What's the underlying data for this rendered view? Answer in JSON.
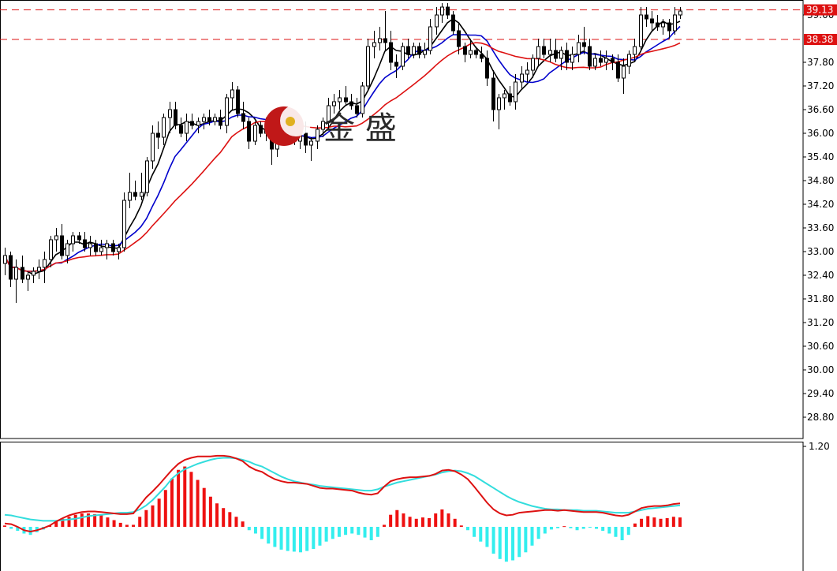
{
  "colors": {
    "background": "#ffffff",
    "frame": "#000000",
    "bull_candle": "#ffffff",
    "bear_candle": "#000000",
    "ma_fast": "#000000",
    "ma_mid": "#0000cc",
    "ma_slow": "#dd1111",
    "level_line": "#dd1111",
    "macd_pos": "#ee1111",
    "macd_neg": "#33eeee",
    "macd_line": "#dd1111",
    "signal_line": "#33dddd",
    "logo_red": "#c01818",
    "logo_gold": "#e0b020"
  },
  "logo": {
    "text": "金 盛"
  },
  "chart_data": [
    {
      "type": "candlestick",
      "title": "",
      "ylim": [
        28.4,
        39.5
      ],
      "y_ticks": [
        "39.00",
        "37.80",
        "37.20",
        "36.60",
        "36.00",
        "35.40",
        "34.80",
        "34.20",
        "33.60",
        "33.00",
        "32.40",
        "31.80",
        "31.20",
        "30.60",
        "30.00",
        "29.40",
        "28.80"
      ],
      "price_labels": [
        {
          "text": "39.13",
          "value": 39.13,
          "style": "filled"
        },
        {
          "text": "38.38",
          "value": 38.38,
          "style": "filled"
        }
      ],
      "levels": [
        39.13,
        38.38
      ],
      "candles": [
        {
          "o": 32.7,
          "h": 33.1,
          "l": 32.4,
          "c": 32.9
        },
        {
          "o": 32.9,
          "h": 33.0,
          "l": 32.1,
          "c": 32.3
        },
        {
          "o": 32.3,
          "h": 32.8,
          "l": 31.7,
          "c": 32.6
        },
        {
          "o": 32.6,
          "h": 32.9,
          "l": 32.2,
          "c": 32.3
        },
        {
          "o": 32.3,
          "h": 32.5,
          "l": 32.0,
          "c": 32.4
        },
        {
          "o": 32.4,
          "h": 32.6,
          "l": 32.2,
          "c": 32.5
        },
        {
          "o": 32.5,
          "h": 32.8,
          "l": 32.3,
          "c": 32.6
        },
        {
          "o": 32.6,
          "h": 33.0,
          "l": 32.2,
          "c": 32.8
        },
        {
          "o": 32.8,
          "h": 33.4,
          "l": 32.6,
          "c": 33.3
        },
        {
          "o": 33.3,
          "h": 33.6,
          "l": 33.0,
          "c": 33.4
        },
        {
          "o": 33.4,
          "h": 33.7,
          "l": 32.8,
          "c": 32.9
        },
        {
          "o": 32.9,
          "h": 33.3,
          "l": 32.7,
          "c": 33.2
        },
        {
          "o": 33.2,
          "h": 33.5,
          "l": 33.0,
          "c": 33.4
        },
        {
          "o": 33.4,
          "h": 33.5,
          "l": 33.2,
          "c": 33.3
        },
        {
          "o": 33.3,
          "h": 33.5,
          "l": 33.0,
          "c": 33.1
        },
        {
          "o": 33.1,
          "h": 33.4,
          "l": 32.9,
          "c": 33.2
        },
        {
          "o": 33.2,
          "h": 33.3,
          "l": 32.9,
          "c": 33.0
        },
        {
          "o": 33.0,
          "h": 33.3,
          "l": 32.9,
          "c": 33.1
        },
        {
          "o": 33.1,
          "h": 33.3,
          "l": 32.8,
          "c": 33.2
        },
        {
          "o": 33.2,
          "h": 33.3,
          "l": 32.9,
          "c": 33.0
        },
        {
          "o": 33.0,
          "h": 33.2,
          "l": 32.8,
          "c": 33.1
        },
        {
          "o": 33.1,
          "h": 34.5,
          "l": 33.0,
          "c": 34.3
        },
        {
          "o": 34.3,
          "h": 35.0,
          "l": 34.1,
          "c": 34.5
        },
        {
          "o": 34.5,
          "h": 34.8,
          "l": 34.3,
          "c": 34.4
        },
        {
          "o": 34.4,
          "h": 35.0,
          "l": 34.3,
          "c": 34.5
        },
        {
          "o": 34.5,
          "h": 35.4,
          "l": 34.4,
          "c": 35.3
        },
        {
          "o": 35.3,
          "h": 36.2,
          "l": 35.1,
          "c": 36.0
        },
        {
          "o": 36.0,
          "h": 36.3,
          "l": 35.6,
          "c": 35.9
        },
        {
          "o": 35.9,
          "h": 36.5,
          "l": 35.7,
          "c": 36.4
        },
        {
          "o": 36.4,
          "h": 36.8,
          "l": 36.0,
          "c": 36.6
        },
        {
          "o": 36.6,
          "h": 36.8,
          "l": 36.1,
          "c": 36.2
        },
        {
          "o": 36.2,
          "h": 36.4,
          "l": 35.9,
          "c": 36.0
        },
        {
          "o": 36.0,
          "h": 36.5,
          "l": 35.8,
          "c": 36.3
        },
        {
          "o": 36.3,
          "h": 36.5,
          "l": 36.1,
          "c": 36.2
        },
        {
          "o": 36.2,
          "h": 36.4,
          "l": 36.0,
          "c": 36.3
        },
        {
          "o": 36.3,
          "h": 36.5,
          "l": 36.1,
          "c": 36.4
        },
        {
          "o": 36.4,
          "h": 36.6,
          "l": 36.2,
          "c": 36.3
        },
        {
          "o": 36.3,
          "h": 36.5,
          "l": 36.2,
          "c": 36.4
        },
        {
          "o": 36.4,
          "h": 36.6,
          "l": 36.1,
          "c": 36.2
        },
        {
          "o": 36.2,
          "h": 37.0,
          "l": 36.0,
          "c": 36.9
        },
        {
          "o": 36.9,
          "h": 37.3,
          "l": 36.6,
          "c": 37.1
        },
        {
          "o": 37.1,
          "h": 37.2,
          "l": 36.4,
          "c": 36.5
        },
        {
          "o": 36.5,
          "h": 36.8,
          "l": 36.1,
          "c": 36.3
        },
        {
          "o": 36.3,
          "h": 36.4,
          "l": 35.6,
          "c": 35.8
        },
        {
          "o": 35.8,
          "h": 36.3,
          "l": 35.7,
          "c": 36.2
        },
        {
          "o": 36.2,
          "h": 36.3,
          "l": 35.9,
          "c": 36.0
        },
        {
          "o": 36.0,
          "h": 36.4,
          "l": 35.8,
          "c": 36.1
        },
        {
          "o": 36.1,
          "h": 36.3,
          "l": 35.2,
          "c": 35.6
        },
        {
          "o": 35.6,
          "h": 35.9,
          "l": 35.4,
          "c": 35.8
        },
        {
          "o": 35.8,
          "h": 36.2,
          "l": 35.7,
          "c": 36.1
        },
        {
          "o": 36.1,
          "h": 36.3,
          "l": 35.9,
          "c": 36.0
        },
        {
          "o": 36.0,
          "h": 36.2,
          "l": 35.7,
          "c": 35.8
        },
        {
          "o": 35.8,
          "h": 36.1,
          "l": 35.6,
          "c": 36.0
        },
        {
          "o": 36.0,
          "h": 36.3,
          "l": 35.5,
          "c": 35.7
        },
        {
          "o": 35.7,
          "h": 35.9,
          "l": 35.3,
          "c": 35.8
        },
        {
          "o": 35.8,
          "h": 36.2,
          "l": 35.6,
          "c": 36.1
        },
        {
          "o": 36.1,
          "h": 36.4,
          "l": 35.9,
          "c": 36.3
        },
        {
          "o": 36.3,
          "h": 36.9,
          "l": 36.1,
          "c": 36.7
        },
        {
          "o": 36.7,
          "h": 37.0,
          "l": 36.5,
          "c": 36.8
        },
        {
          "o": 36.8,
          "h": 37.1,
          "l": 36.6,
          "c": 36.9
        },
        {
          "o": 36.9,
          "h": 37.2,
          "l": 36.7,
          "c": 36.8
        },
        {
          "o": 36.8,
          "h": 37.0,
          "l": 36.6,
          "c": 36.7
        },
        {
          "o": 36.7,
          "h": 36.9,
          "l": 36.4,
          "c": 36.5
        },
        {
          "o": 36.5,
          "h": 37.3,
          "l": 36.4,
          "c": 37.2
        },
        {
          "o": 37.2,
          "h": 38.4,
          "l": 37.1,
          "c": 38.2
        },
        {
          "o": 38.2,
          "h": 38.6,
          "l": 37.9,
          "c": 38.3
        },
        {
          "o": 38.3,
          "h": 38.7,
          "l": 38.1,
          "c": 38.4
        },
        {
          "o": 38.4,
          "h": 39.1,
          "l": 38.1,
          "c": 38.3
        },
        {
          "o": 38.3,
          "h": 38.6,
          "l": 37.6,
          "c": 37.8
        },
        {
          "o": 37.8,
          "h": 38.0,
          "l": 37.4,
          "c": 37.7
        },
        {
          "o": 37.7,
          "h": 38.3,
          "l": 37.6,
          "c": 38.2
        },
        {
          "o": 38.2,
          "h": 38.4,
          "l": 37.9,
          "c": 38.0
        },
        {
          "o": 38.0,
          "h": 38.3,
          "l": 37.9,
          "c": 38.2
        },
        {
          "o": 38.2,
          "h": 38.3,
          "l": 37.9,
          "c": 38.0
        },
        {
          "o": 38.0,
          "h": 38.3,
          "l": 37.9,
          "c": 38.1
        },
        {
          "o": 38.1,
          "h": 38.9,
          "l": 38.0,
          "c": 38.7
        },
        {
          "o": 38.7,
          "h": 39.2,
          "l": 38.5,
          "c": 39.0
        },
        {
          "o": 39.0,
          "h": 39.3,
          "l": 38.8,
          "c": 39.2
        },
        {
          "o": 39.2,
          "h": 39.3,
          "l": 38.9,
          "c": 39.0
        },
        {
          "o": 39.0,
          "h": 39.1,
          "l": 38.5,
          "c": 38.6
        },
        {
          "o": 38.6,
          "h": 38.8,
          "l": 38.0,
          "c": 38.2
        },
        {
          "o": 38.2,
          "h": 38.3,
          "l": 37.8,
          "c": 38.0
        },
        {
          "o": 38.0,
          "h": 38.4,
          "l": 37.9,
          "c": 38.1
        },
        {
          "o": 38.1,
          "h": 38.2,
          "l": 37.9,
          "c": 38.0
        },
        {
          "o": 38.0,
          "h": 38.2,
          "l": 37.8,
          "c": 37.9
        },
        {
          "o": 37.9,
          "h": 38.1,
          "l": 37.2,
          "c": 37.4
        },
        {
          "o": 37.4,
          "h": 37.6,
          "l": 36.3,
          "c": 36.6
        },
        {
          "o": 36.6,
          "h": 37.0,
          "l": 36.1,
          "c": 36.9
        },
        {
          "o": 36.9,
          "h": 37.1,
          "l": 36.6,
          "c": 37.0
        },
        {
          "o": 37.0,
          "h": 37.2,
          "l": 36.7,
          "c": 36.8
        },
        {
          "o": 36.8,
          "h": 37.5,
          "l": 36.6,
          "c": 37.3
        },
        {
          "o": 37.3,
          "h": 37.7,
          "l": 37.1,
          "c": 37.5
        },
        {
          "o": 37.5,
          "h": 37.8,
          "l": 37.3,
          "c": 37.6
        },
        {
          "o": 37.6,
          "h": 38.0,
          "l": 37.4,
          "c": 37.9
        },
        {
          "o": 37.9,
          "h": 38.4,
          "l": 37.7,
          "c": 38.2
        },
        {
          "o": 38.2,
          "h": 38.4,
          "l": 37.9,
          "c": 38.0
        },
        {
          "o": 38.0,
          "h": 38.4,
          "l": 37.8,
          "c": 38.1
        },
        {
          "o": 38.1,
          "h": 38.4,
          "l": 37.8,
          "c": 37.9
        },
        {
          "o": 37.9,
          "h": 38.2,
          "l": 37.6,
          "c": 38.1
        },
        {
          "o": 38.1,
          "h": 38.3,
          "l": 37.6,
          "c": 37.8
        },
        {
          "o": 37.8,
          "h": 38.2,
          "l": 37.6,
          "c": 38.0
        },
        {
          "o": 38.0,
          "h": 38.5,
          "l": 37.8,
          "c": 38.3
        },
        {
          "o": 38.3,
          "h": 38.7,
          "l": 38.0,
          "c": 38.2
        },
        {
          "o": 38.2,
          "h": 38.4,
          "l": 37.6,
          "c": 37.7
        },
        {
          "o": 37.7,
          "h": 38.0,
          "l": 37.6,
          "c": 37.9
        },
        {
          "o": 37.9,
          "h": 38.1,
          "l": 37.7,
          "c": 37.8
        },
        {
          "o": 37.8,
          "h": 38.1,
          "l": 37.6,
          "c": 37.9
        },
        {
          "o": 37.9,
          "h": 38.0,
          "l": 37.6,
          "c": 37.8
        },
        {
          "o": 37.8,
          "h": 38.0,
          "l": 37.3,
          "c": 37.4
        },
        {
          "o": 37.4,
          "h": 37.9,
          "l": 37.0,
          "c": 37.7
        },
        {
          "o": 37.7,
          "h": 38.1,
          "l": 37.5,
          "c": 38.0
        },
        {
          "o": 38.0,
          "h": 38.4,
          "l": 37.8,
          "c": 38.2
        },
        {
          "o": 38.2,
          "h": 39.2,
          "l": 38.1,
          "c": 39.0
        },
        {
          "o": 39.0,
          "h": 39.2,
          "l": 38.7,
          "c": 38.9
        },
        {
          "o": 38.9,
          "h": 39.1,
          "l": 38.6,
          "c": 38.8
        },
        {
          "o": 38.8,
          "h": 39.0,
          "l": 38.6,
          "c": 38.7
        },
        {
          "o": 38.7,
          "h": 38.9,
          "l": 38.5,
          "c": 38.8
        },
        {
          "o": 38.8,
          "h": 38.9,
          "l": 38.4,
          "c": 38.6
        },
        {
          "o": 38.6,
          "h": 39.2,
          "l": 38.5,
          "c": 39.0
        },
        {
          "o": 39.0,
          "h": 39.2,
          "l": 38.9,
          "c": 39.1
        }
      ],
      "moving_averages": [
        {
          "period": 5,
          "color": "#000000"
        },
        {
          "period": 10,
          "color": "#0000cc"
        },
        {
          "period": 20,
          "color": "#dd1111"
        }
      ]
    },
    {
      "type": "bar",
      "title": "",
      "y_ticks": [
        "1.20"
      ],
      "ylim": [
        -0.55,
        1.2
      ],
      "histogram": [
        0.02,
        -0.03,
        -0.06,
        -0.1,
        -0.12,
        -0.08,
        -0.04,
        0.02,
        0.08,
        0.12,
        0.15,
        0.18,
        0.2,
        0.2,
        0.19,
        0.18,
        0.14,
        0.1,
        0.06,
        0.03,
        0.03,
        0.15,
        0.25,
        0.32,
        0.42,
        0.55,
        0.72,
        0.85,
        0.9,
        0.82,
        0.7,
        0.58,
        0.45,
        0.35,
        0.28,
        0.22,
        0.15,
        0.08,
        -0.05,
        -0.1,
        -0.18,
        -0.25,
        -0.3,
        -0.34,
        -0.36,
        -0.37,
        -0.38,
        -0.36,
        -0.33,
        -0.28,
        -0.22,
        -0.18,
        -0.15,
        -0.12,
        -0.1,
        -0.12,
        -0.16,
        -0.2,
        -0.15,
        0.03,
        0.18,
        0.25,
        0.2,
        0.15,
        0.12,
        0.14,
        0.13,
        0.2,
        0.26,
        0.2,
        0.12,
        0.02,
        -0.05,
        -0.15,
        -0.22,
        -0.3,
        -0.4,
        -0.48,
        -0.52,
        -0.5,
        -0.45,
        -0.38,
        -0.28,
        -0.18,
        -0.1,
        -0.04,
        -0.02,
        0.01,
        -0.02,
        -0.05,
        -0.03,
        -0.01,
        -0.03,
        -0.06,
        -0.1,
        -0.15,
        -0.2,
        -0.12,
        0.05,
        0.12,
        0.16,
        0.14,
        0.12,
        0.13,
        0.15,
        0.14
      ],
      "macd_line": [
        0.05,
        0.04,
        0.0,
        -0.05,
        -0.07,
        -0.05,
        -0.02,
        0.02,
        0.08,
        0.13,
        0.17,
        0.2,
        0.22,
        0.23,
        0.23,
        0.22,
        0.21,
        0.2,
        0.19,
        0.19,
        0.2,
        0.32,
        0.44,
        0.53,
        0.63,
        0.74,
        0.85,
        0.94,
        1.0,
        1.03,
        1.05,
        1.05,
        1.05,
        1.06,
        1.06,
        1.05,
        1.02,
        0.98,
        0.9,
        0.85,
        0.82,
        0.76,
        0.71,
        0.68,
        0.66,
        0.66,
        0.65,
        0.64,
        0.61,
        0.58,
        0.57,
        0.57,
        0.56,
        0.55,
        0.54,
        0.51,
        0.49,
        0.48,
        0.5,
        0.6,
        0.68,
        0.71,
        0.73,
        0.74,
        0.74,
        0.75,
        0.76,
        0.79,
        0.84,
        0.85,
        0.83,
        0.78,
        0.71,
        0.6,
        0.48,
        0.36,
        0.26,
        0.2,
        0.17,
        0.18,
        0.21,
        0.22,
        0.23,
        0.24,
        0.25,
        0.25,
        0.24,
        0.25,
        0.24,
        0.23,
        0.22,
        0.22,
        0.22,
        0.21,
        0.19,
        0.17,
        0.16,
        0.18,
        0.23,
        0.28,
        0.3,
        0.31,
        0.31,
        0.32,
        0.34,
        0.35
      ],
      "signal_line": [
        0.18,
        0.17,
        0.15,
        0.13,
        0.11,
        0.1,
        0.09,
        0.09,
        0.09,
        0.1,
        0.11,
        0.12,
        0.14,
        0.16,
        0.17,
        0.18,
        0.19,
        0.2,
        0.21,
        0.21,
        0.22,
        0.26,
        0.32,
        0.4,
        0.5,
        0.6,
        0.72,
        0.8,
        0.86,
        0.9,
        0.94,
        0.97,
        1.0,
        1.02,
        1.03,
        1.03,
        1.02,
        1.0,
        0.97,
        0.93,
        0.9,
        0.85,
        0.8,
        0.75,
        0.71,
        0.68,
        0.66,
        0.64,
        0.63,
        0.61,
        0.6,
        0.59,
        0.58,
        0.57,
        0.56,
        0.55,
        0.54,
        0.54,
        0.56,
        0.6,
        0.63,
        0.66,
        0.68,
        0.7,
        0.72,
        0.74,
        0.76,
        0.78,
        0.81,
        0.83,
        0.84,
        0.83,
        0.8,
        0.76,
        0.7,
        0.64,
        0.58,
        0.52,
        0.46,
        0.41,
        0.37,
        0.34,
        0.31,
        0.29,
        0.27,
        0.26,
        0.26,
        0.25,
        0.25,
        0.25,
        0.24,
        0.24,
        0.24,
        0.23,
        0.22,
        0.21,
        0.21,
        0.21,
        0.23,
        0.25,
        0.27,
        0.28,
        0.29,
        0.3,
        0.31,
        0.32
      ]
    }
  ]
}
